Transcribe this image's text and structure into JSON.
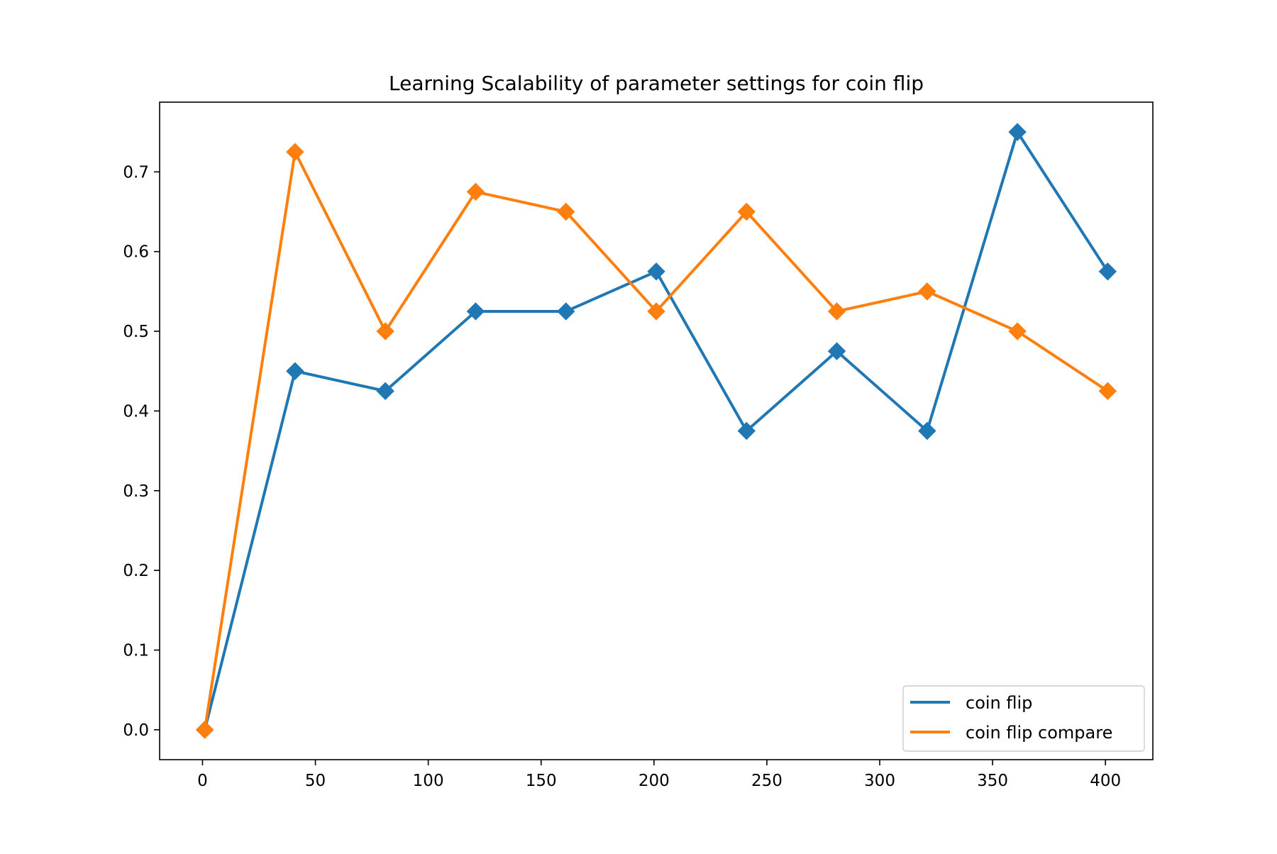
{
  "chart_data": {
    "type": "line",
    "title": "Learning Scalability of parameter settings for coin flip",
    "xlabel": "",
    "ylabel": "",
    "x": [
      1,
      41,
      81,
      121,
      161,
      201,
      241,
      281,
      321,
      361,
      401
    ],
    "xlim": [
      -19.0,
      421.0
    ],
    "ylim": [
      -0.0375,
      0.7875
    ],
    "xticks": [
      0,
      50,
      100,
      150,
      200,
      250,
      300,
      350,
      400
    ],
    "xtick_labels": [
      "0",
      "50",
      "100",
      "150",
      "200",
      "250",
      "300",
      "350",
      "400"
    ],
    "yticks": [
      0.0,
      0.1,
      0.2,
      0.3,
      0.4,
      0.5,
      0.6,
      0.7
    ],
    "ytick_labels": [
      "0.0",
      "0.1",
      "0.2",
      "0.3",
      "0.4",
      "0.5",
      "0.6",
      "0.7"
    ],
    "grid": false,
    "legend_position": "lower-right",
    "series": [
      {
        "name": "coin flip",
        "color": "#1f77b4",
        "marker": "diamond",
        "values": [
          0.0,
          0.45,
          0.425,
          0.525,
          0.525,
          0.575,
          0.375,
          0.475,
          0.375,
          0.75,
          0.575
        ]
      },
      {
        "name": "coin flip compare",
        "color": "#ff7f0e",
        "marker": "diamond",
        "values": [
          0.0,
          0.725,
          0.5,
          0.675,
          0.65,
          0.525,
          0.65,
          0.525,
          0.55,
          0.5,
          0.425
        ]
      }
    ]
  }
}
